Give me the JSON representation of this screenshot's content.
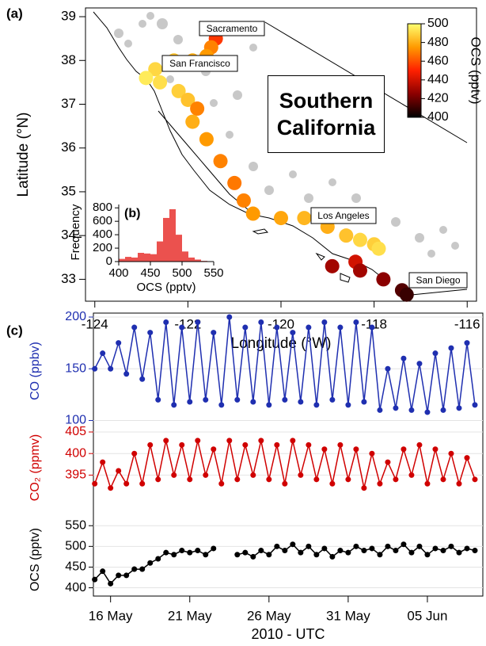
{
  "chart_data": [
    {
      "type": "scatter",
      "panel_label": "(a)",
      "xlabel": "Longitude (°W)",
      "ylabel": "Latitude (°N)",
      "xlim": [
        -124.2,
        -115.8
      ],
      "ylim": [
        32.5,
        39.2
      ],
      "xticks": [
        -124,
        -122,
        -120,
        -118,
        -116
      ],
      "yticks": [
        33,
        34,
        35,
        36,
        37,
        38,
        39
      ],
      "x": [
        -121.4,
        -121.5,
        -121.6,
        -121.9,
        -122.3,
        -122.7,
        -122.9,
        -122.6,
        -122.2,
        -122.0,
        -121.8,
        -121.9,
        -121.6,
        -121.3,
        -121.0,
        -120.8,
        -120.6,
        -120.0,
        -119.5,
        -119.0,
        -118.6,
        -118.3,
        -118.0,
        -117.9,
        -118.4,
        -118.9,
        -118.3,
        -117.8,
        -117.4,
        -117.3
      ],
      "y": [
        38.5,
        38.3,
        38.1,
        38.0,
        38.0,
        37.8,
        37.6,
        37.5,
        37.3,
        37.1,
        36.9,
        36.6,
        36.2,
        35.7,
        35.2,
        34.8,
        34.5,
        34.4,
        34.4,
        34.2,
        34.0,
        33.9,
        33.8,
        33.7,
        33.4,
        33.3,
        33.2,
        33.0,
        32.75,
        32.65
      ],
      "values": [
        455,
        470,
        475,
        480,
        485,
        490,
        495,
        492,
        488,
        485,
        470,
        480,
        475,
        470,
        468,
        470,
        475,
        478,
        482,
        480,
        485,
        490,
        488,
        492,
        440,
        430,
        430,
        425,
        415,
        410
      ],
      "colormap": [
        "#000000",
        "#8b0000",
        "#ff2000",
        "#ff9a00",
        "#ffff70"
      ],
      "clim": [
        400,
        500
      ],
      "cticks": [
        400,
        420,
        440,
        460,
        480,
        500
      ],
      "clabel": "OCS (pptv)",
      "annotations": [
        "Sacramento",
        "San Francisco",
        "Los Angeles",
        "Southern California",
        "San Diego"
      ]
    },
    {
      "type": "histogram",
      "panel_label": "(b)",
      "xlabel": "OCS (pptv)",
      "ylabel": "Frequency",
      "bins": [
        400,
        410,
        420,
        430,
        440,
        450,
        460,
        470,
        480,
        490,
        500,
        510,
        520,
        530,
        540,
        550
      ],
      "counts": [
        40,
        70,
        60,
        130,
        120,
        110,
        300,
        650,
        780,
        400,
        150,
        60,
        30,
        10,
        5
      ],
      "color": "#e8322f",
      "xlim": [
        400,
        550
      ],
      "ylim": [
        0,
        850
      ],
      "xticks": [
        400,
        450,
        500,
        550
      ],
      "yticks": [
        0,
        200,
        400,
        600,
        800
      ]
    },
    {
      "type": "line",
      "panel_label": "(c)",
      "xlabel": "2010 - UTC",
      "xlim": [
        "2010-05-14T22",
        "2010-06-08T12"
      ],
      "xticks": [
        {
          "value": "2010-05-16T00",
          "label": "16 May"
        },
        {
          "value": "2010-05-21T00",
          "label": "21 May"
        },
        {
          "value": "2010-05-26T00",
          "label": "26 May"
        },
        {
          "value": "2010-05-31T00",
          "label": "31 May"
        },
        {
          "value": "2010-06-05T00",
          "label": "05 Jun"
        }
      ],
      "x": [
        "2010-05-15T00",
        "2010-05-15T12",
        "2010-05-16T00",
        "2010-05-16T12",
        "2010-05-17T00",
        "2010-05-17T12",
        "2010-05-18T00",
        "2010-05-18T12",
        "2010-05-19T00",
        "2010-05-19T12",
        "2010-05-20T00",
        "2010-05-20T12",
        "2010-05-21T00",
        "2010-05-21T12",
        "2010-05-22T00",
        "2010-05-22T12",
        "2010-05-23T00",
        "2010-05-23T12",
        "2010-05-24T00",
        "2010-05-24T12",
        "2010-05-25T00",
        "2010-05-25T12",
        "2010-05-26T00",
        "2010-05-26T12",
        "2010-05-27T00",
        "2010-05-27T12",
        "2010-05-28T00",
        "2010-05-28T12",
        "2010-05-29T00",
        "2010-05-29T12",
        "2010-05-30T00",
        "2010-05-30T12",
        "2010-05-31T00",
        "2010-05-31T12",
        "2010-06-01T00",
        "2010-06-01T12",
        "2010-06-02T00",
        "2010-06-02T12",
        "2010-06-03T00",
        "2010-06-03T12",
        "2010-06-04T00",
        "2010-06-04T12",
        "2010-06-05T00",
        "2010-06-05T12",
        "2010-06-06T00",
        "2010-06-06T12",
        "2010-06-07T00",
        "2010-06-07T12",
        "2010-06-08T00"
      ],
      "series": [
        {
          "name": "CO (ppbv)",
          "color": "#1f2fb0",
          "ylim": [
            95,
            200
          ],
          "yticks": [
            100,
            150,
            200
          ],
          "values": [
            150,
            165,
            150,
            175,
            145,
            190,
            140,
            185,
            120,
            195,
            115,
            190,
            118,
            195,
            120,
            185,
            115,
            200,
            120,
            190,
            118,
            195,
            115,
            190,
            120,
            185,
            118,
            190,
            115,
            195,
            120,
            190,
            115,
            195,
            118,
            190,
            110,
            150,
            112,
            160,
            110,
            155,
            108,
            165,
            110,
            170,
            112,
            175,
            115
          ]
        },
        {
          "name": "CO₂ (ppmv)",
          "color": "#d00000",
          "ylim": [
            389,
            405
          ],
          "yticks": [
            395,
            400,
            405
          ],
          "values": [
            393,
            398,
            392,
            396,
            393,
            400,
            393,
            402,
            394,
            403,
            395,
            402,
            394,
            403,
            395,
            401,
            393,
            403,
            394,
            402,
            395,
            403,
            394,
            402,
            393,
            403,
            395,
            402,
            394,
            401,
            393,
            402,
            394,
            401,
            392,
            400,
            393,
            398,
            394,
            401,
            395,
            402,
            393,
            401,
            394,
            400,
            393,
            399,
            394
          ]
        },
        {
          "name": "OCS (pptv)",
          "color": "#000000",
          "ylim": [
            380,
            560
          ],
          "yticks": [
            400,
            450,
            500,
            550
          ],
          "values": [
            420,
            440,
            410,
            430,
            430,
            445,
            445,
            460,
            470,
            485,
            480,
            490,
            485,
            490,
            480,
            495,
            null,
            null,
            480,
            485,
            475,
            490,
            480,
            500,
            490,
            505,
            485,
            500,
            480,
            495,
            475,
            490,
            485,
            500,
            490,
            495,
            480,
            500,
            490,
            505,
            485,
            500,
            480,
            495,
            490,
            500,
            485,
            495,
            490
          ]
        }
      ]
    }
  ]
}
